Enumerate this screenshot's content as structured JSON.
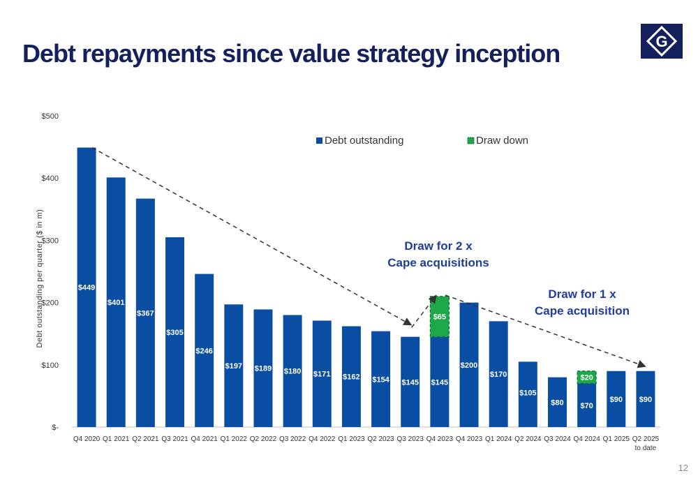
{
  "slide": {
    "title": "Debt repayments since value strategy inception",
    "page_number": "12",
    "logo_letter": "G"
  },
  "colors": {
    "debt_bar": "#0a4ea3",
    "draw_down": "#1fa84a",
    "title": "#14205c",
    "annotation": "#1f3d99"
  },
  "chart_data": {
    "type": "bar",
    "stacked": true,
    "categories": [
      "Q4 2020",
      "Q1 2021",
      "Q2 2021",
      "Q3 2021",
      "Q4 2021",
      "Q1 2022",
      "Q2 2022",
      "Q3 2022",
      "Q4 2022",
      "Q1 2023",
      "Q2 2023",
      "Q3 2023",
      "Q4 2023",
      "Q4 2023",
      "Q1 2024",
      "Q2 2024",
      "Q3 2024",
      "Q4 2024",
      "Q1 2025",
      "Q2 2025 to date"
    ],
    "series": [
      {
        "name": "Debt outstanding",
        "values": [
          449,
          401,
          367,
          305,
          246,
          197,
          189,
          180,
          171,
          162,
          154,
          145,
          145,
          200,
          170,
          105,
          80,
          70,
          90,
          90
        ],
        "labels": [
          "$449",
          "$401",
          "$367",
          "$305",
          "$246",
          "$197",
          "$189",
          "$180",
          "$171",
          "$162",
          "$154",
          "$145",
          "$145",
          "$200",
          "$170",
          "$105",
          "$80",
          "$70",
          "$90",
          "$90"
        ]
      },
      {
        "name": "Draw down",
        "values": [
          0,
          0,
          0,
          0,
          0,
          0,
          0,
          0,
          0,
          0,
          0,
          0,
          65,
          0,
          0,
          0,
          0,
          20,
          0,
          0
        ],
        "labels": [
          "",
          "",
          "",
          "",
          "",
          "",
          "",
          "",
          "",
          "",
          "",
          "",
          "$65",
          "",
          "",
          "",
          "",
          "$20",
          "",
          ""
        ]
      }
    ],
    "ylabel": "Debt outstanding per quarter ($ in m)",
    "ylim": [
      0,
      500
    ],
    "yticks": [
      0,
      100,
      200,
      300,
      400,
      500
    ],
    "ytick_labels": [
      "$-",
      "$100",
      "$200",
      "$300",
      "$400",
      "$500"
    ],
    "legend_position": "top-right",
    "annotations": [
      {
        "lines": [
          "Draw for 2 x",
          "Cape acquisitions"
        ]
      },
      {
        "lines": [
          "Draw for 1 x",
          "Cape acquisition"
        ]
      }
    ],
    "trend_arrows": [
      {
        "from_category_index": 0,
        "from_value": 449,
        "to_category_index": 11,
        "to_value": 165
      },
      {
        "from_category_index": 11,
        "from_value": 160,
        "to_category_index": 12,
        "to_value": 210
      },
      {
        "from_category_index": 12,
        "from_value": 212,
        "to_category_index": 19,
        "to_value": 98
      }
    ]
  }
}
